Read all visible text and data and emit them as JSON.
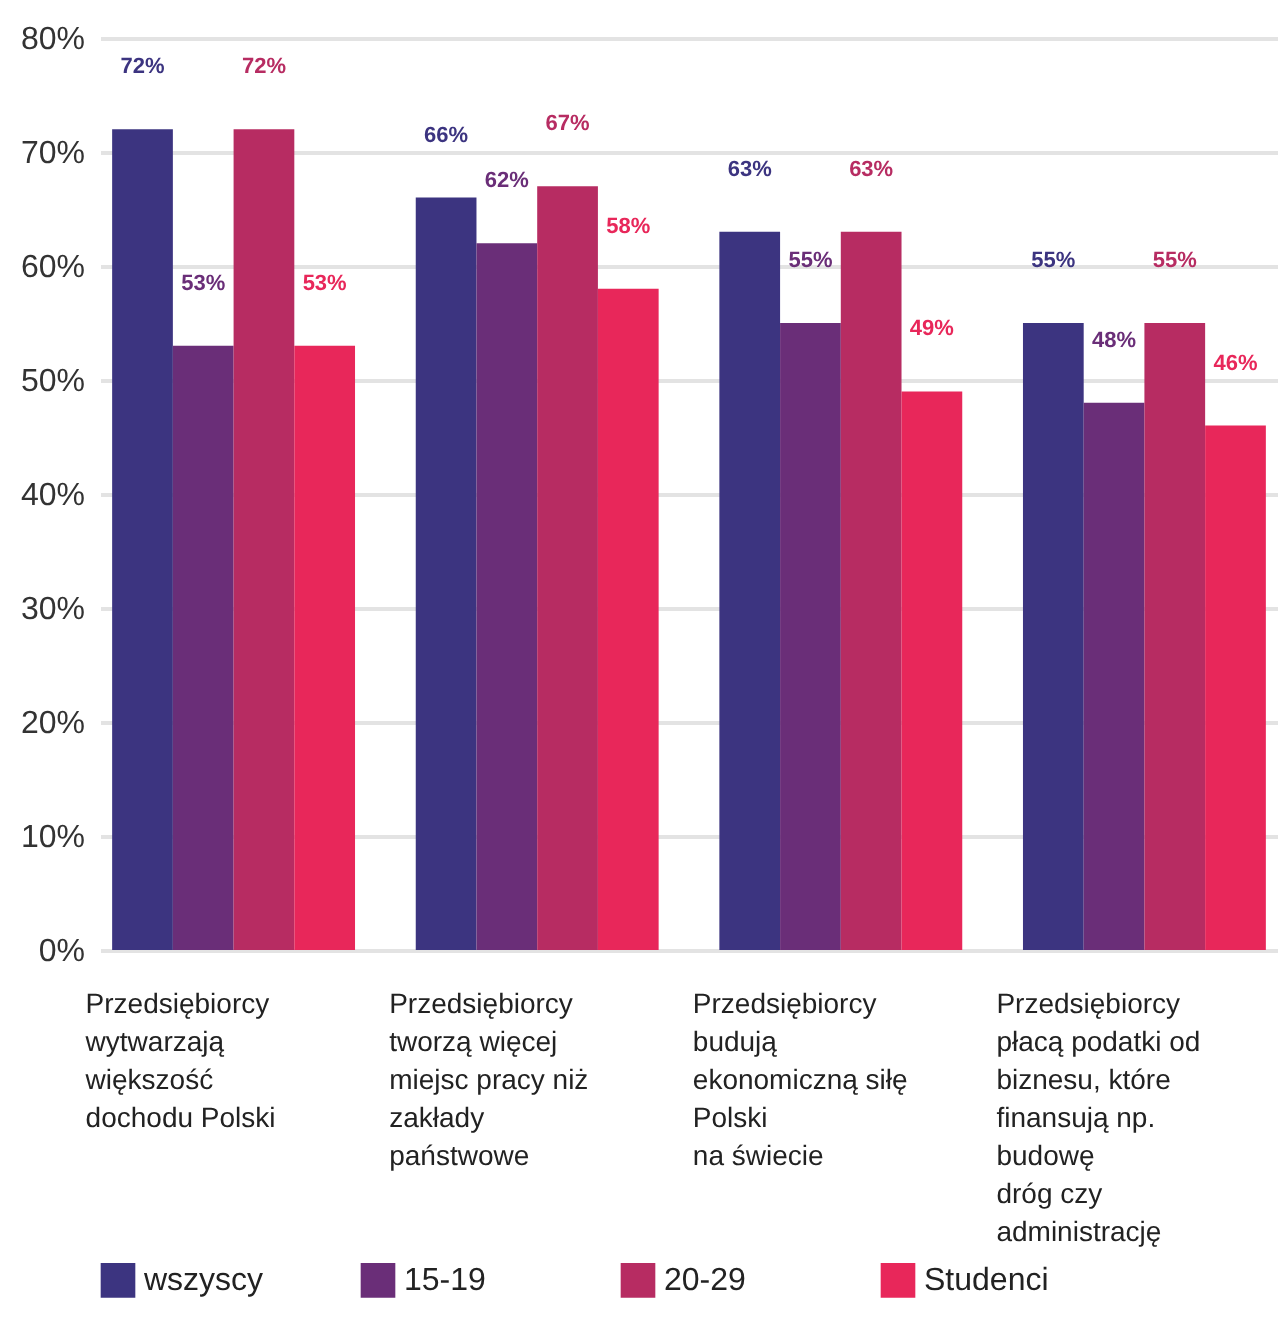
{
  "chart_data": {
    "type": "bar",
    "categories": [
      "Przedsiębiorcy\nwytwarzają\nwiększość\ndochodu Polski",
      "Przedsiębiorcy\ntworzą więcej\nmiejsc pracy niż\nzakłady\npaństwowe",
      "Przedsiębiorcy\nbudują\nekonomiczną siłę\nPolski\nna świecie",
      "Przedsiębiorcy\npłacą podatki od\nbiznesu, które\nfinansują np.\nbudowę\ndróg czy\nadministrację"
    ],
    "series": [
      {
        "name": "wszyscy",
        "color": "#3c3480",
        "values": [
          72,
          66,
          63,
          55
        ],
        "value_labels": [
          "72%",
          "66%",
          "63%",
          "55%"
        ]
      },
      {
        "name": "15-19",
        "color": "#6a2e78",
        "values": [
          53,
          62,
          55,
          48
        ],
        "value_labels": [
          "53%",
          "62%",
          "55%",
          "48%"
        ]
      },
      {
        "name": "20-29",
        "color": "#b72c62",
        "values": [
          72,
          67,
          63,
          55
        ],
        "value_labels": [
          "72%",
          "67%",
          "63%",
          "55%"
        ]
      },
      {
        "name": "Studenci",
        "color": "#e8275a",
        "values": [
          53,
          58,
          49,
          46
        ],
        "value_labels": [
          "53%",
          "58%",
          "49%",
          "46%"
        ]
      }
    ],
    "ylim": [
      0,
      80
    ],
    "yticks": [
      {
        "value": 0,
        "label": "0%"
      },
      {
        "value": 10,
        "label": "10%"
      },
      {
        "value": 20,
        "label": "20%"
      },
      {
        "value": 30,
        "label": "30%"
      },
      {
        "value": 40,
        "label": "40%"
      },
      {
        "value": 50,
        "label": "50%"
      },
      {
        "value": 60,
        "label": "60%"
      },
      {
        "value": 70,
        "label": "70%"
      },
      {
        "value": 80,
        "label": "80%"
      }
    ],
    "grid": "y",
    "legend": "bottom"
  }
}
